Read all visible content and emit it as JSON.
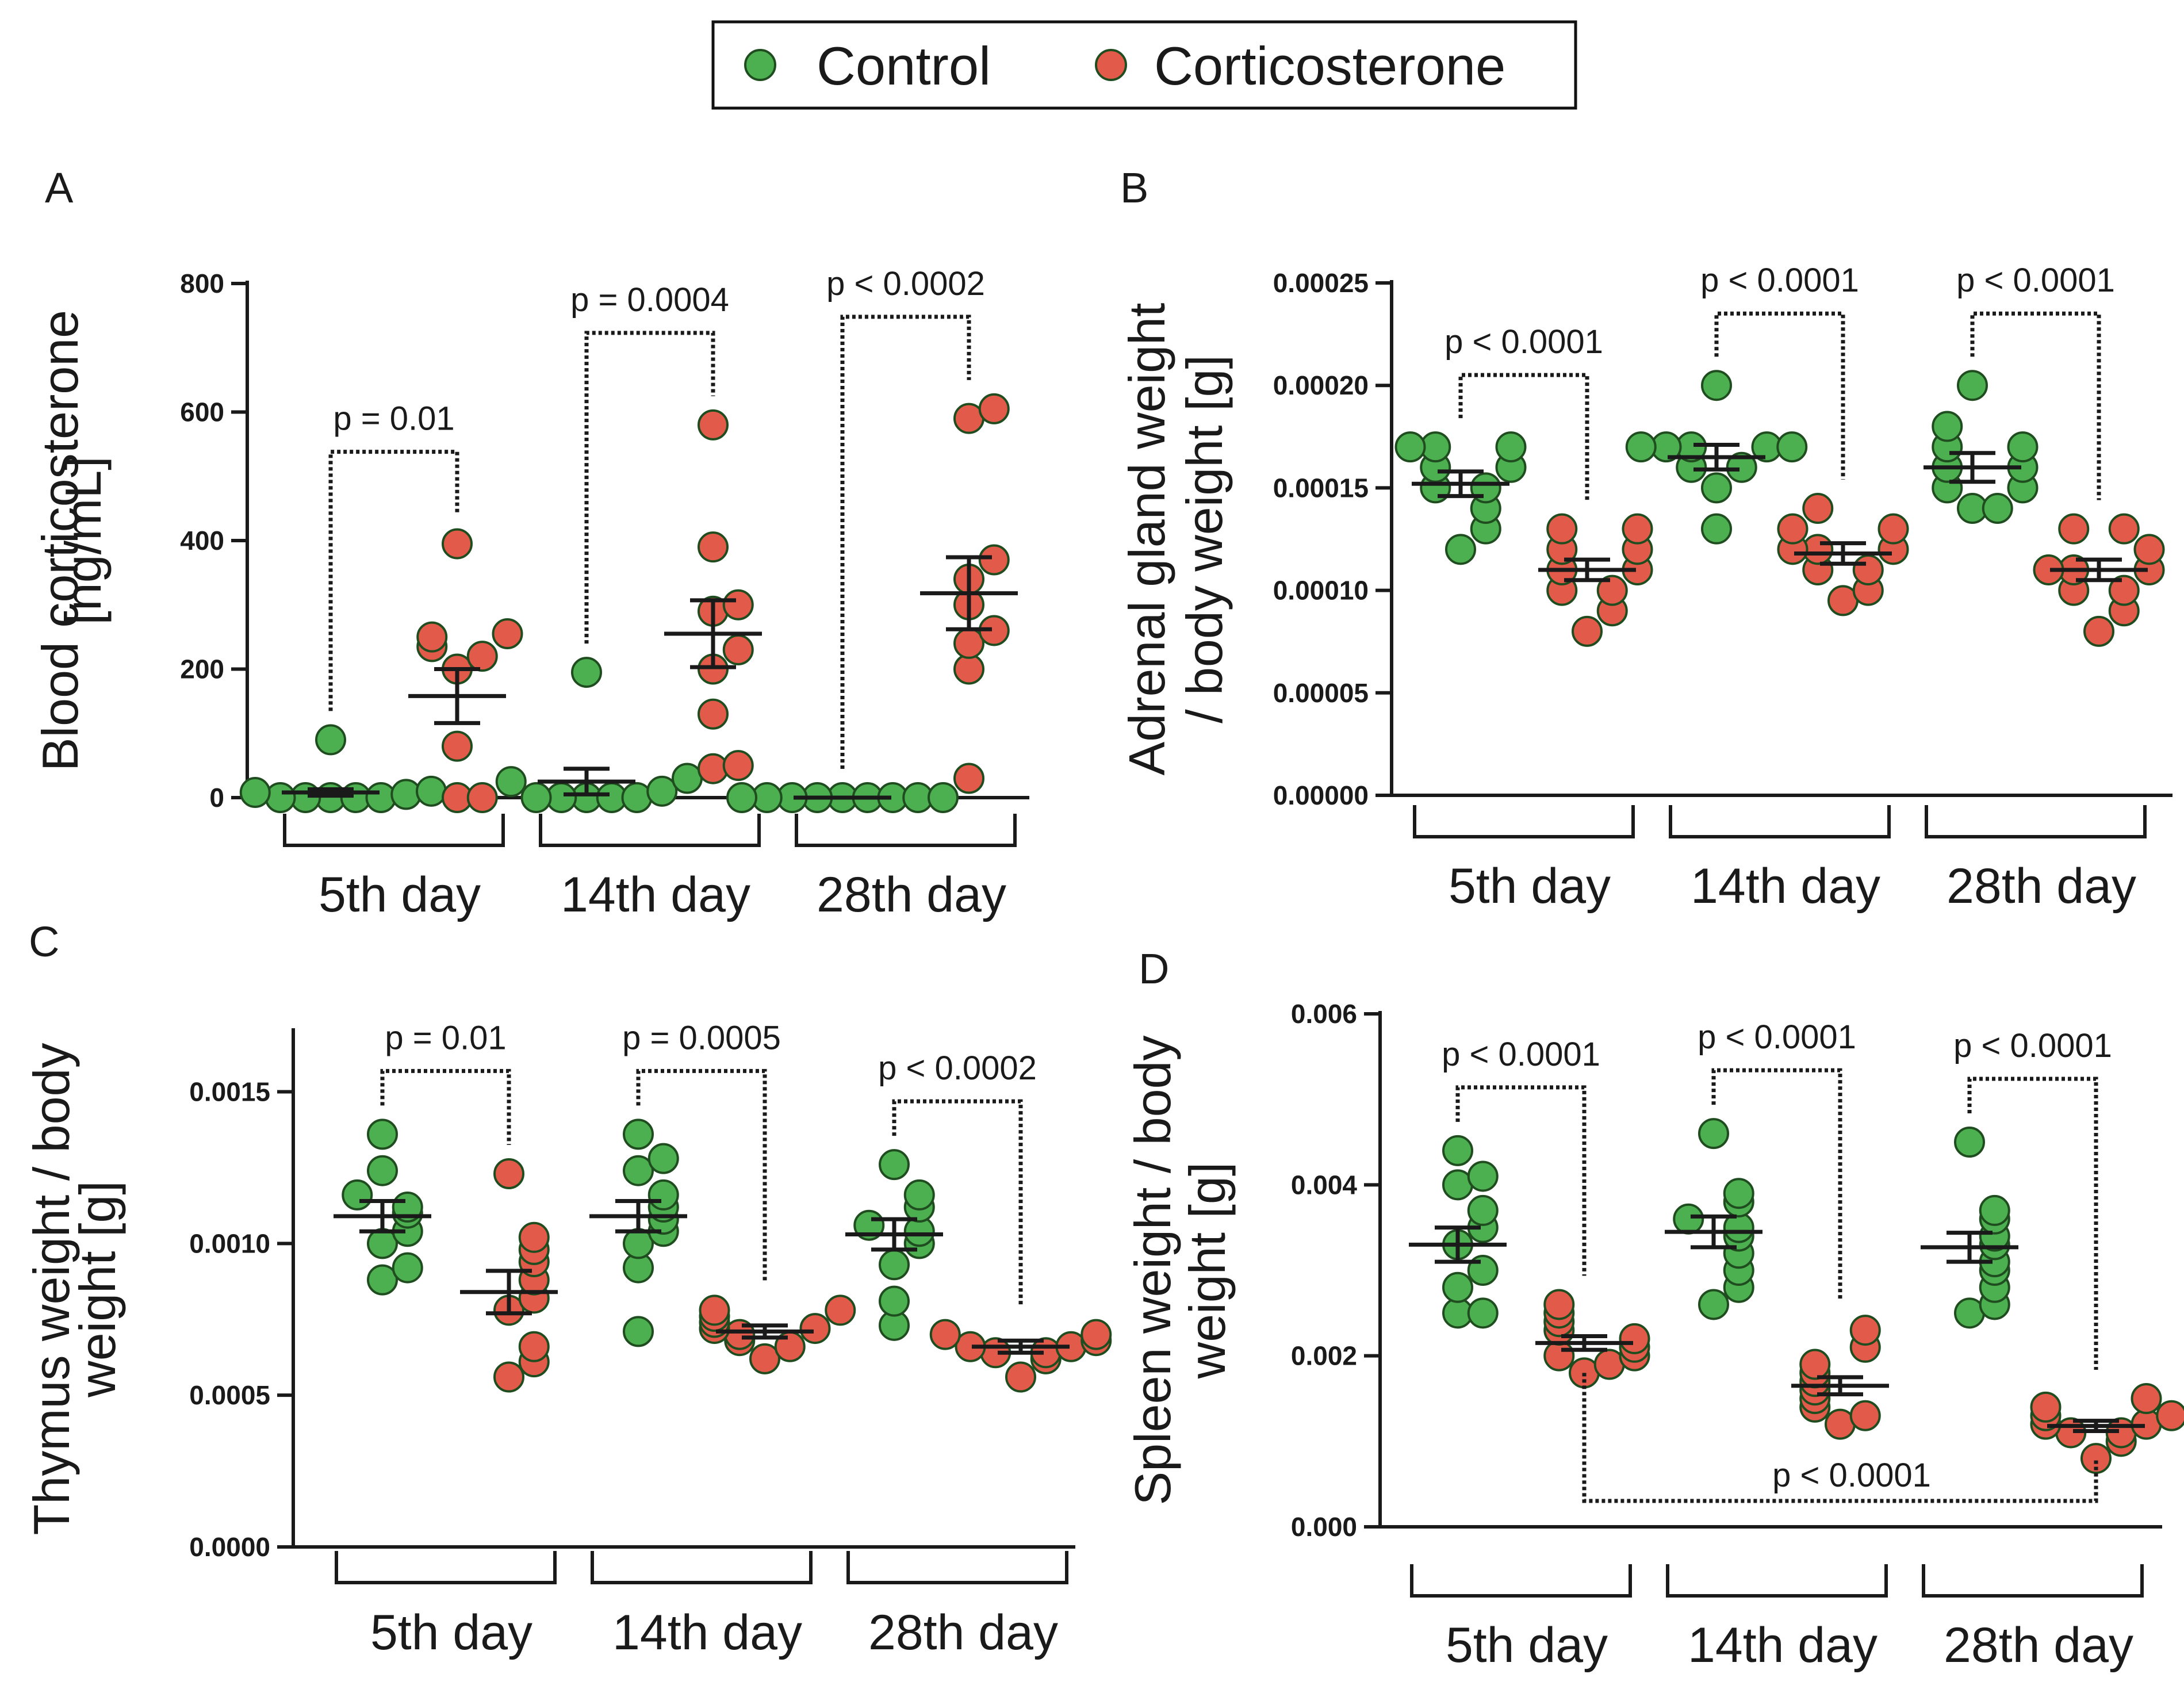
{
  "legend": {
    "entries": [
      {
        "label": "Control",
        "color": "#4caf50"
      },
      {
        "label": "Corticosterone",
        "color": "#e25a4a"
      }
    ]
  },
  "chart_data": [
    {
      "type": "scatter",
      "panel": "A",
      "ylabel": [
        "Blood corticosterone",
        "[ng/mL]"
      ],
      "ylim": [
        0,
        800
      ],
      "yticks": [
        "0",
        "200",
        "400",
        "600",
        "800"
      ],
      "groups": [
        "5th day",
        "14th day",
        "28th day"
      ],
      "series": [
        {
          "name": "Control",
          "color": "#4caf50",
          "values": [
            [
              0,
              0,
              0,
              0,
              0,
              5,
              8,
              10,
              90
            ],
            [
              0,
              0,
              0,
              0,
              0,
              10,
              25,
              30,
              195
            ],
            [
              0,
              0,
              0,
              0,
              0,
              0,
              0,
              0,
              0
            ]
          ],
          "mean": [
            8,
            25,
            0
          ],
          "sem": [
            5,
            20,
            0
          ]
        },
        {
          "name": "Corticosterone",
          "color": "#e25a4a",
          "values": [
            [
              0,
              0,
              80,
              200,
              220,
              235,
              250,
              255,
              395
            ],
            [
              45,
              50,
              130,
              200,
              230,
              290,
              300,
              390,
              580
            ],
            [
              30,
              200,
              240,
              260,
              300,
              340,
              370,
              590,
              605
            ]
          ],
          "mean": [
            158,
            255,
            318
          ],
          "sem": [
            42,
            52,
            56
          ]
        }
      ],
      "annotations": [
        {
          "text": "p = 0.01",
          "group": 0
        },
        {
          "text": "p = 0.0004",
          "group": 1
        },
        {
          "text": "p < 0.0002",
          "group": 2
        }
      ]
    },
    {
      "type": "scatter",
      "panel": "B",
      "ylabel": [
        "Adrenal gland weight",
        "/ body weight [g]"
      ],
      "ylim": [
        0,
        0.00025
      ],
      "yticks": [
        "0.00000",
        "0.00005",
        "0.00010",
        "0.00015",
        "0.00020",
        "0.00025"
      ],
      "groups": [
        "5th day",
        "14th day",
        "28th day"
      ],
      "series": [
        {
          "name": "Control",
          "color": "#4caf50",
          "values": [
            [
              0.00012,
              0.00013,
              0.00014,
              0.00015,
              0.00015,
              0.00016,
              0.00016,
              0.00017,
              0.00017,
              0.00017
            ],
            [
              0.00013,
              0.00015,
              0.00016,
              0.00016,
              0.00017,
              0.00017,
              0.00017,
              0.00017,
              0.00017,
              0.0002
            ],
            [
              0.00014,
              0.00014,
              0.00015,
              0.00015,
              0.00016,
              0.00016,
              0.00017,
              0.00017,
              0.00018,
              0.0002
            ]
          ],
          "mean": [
            0.000152,
            0.000165,
            0.00016
          ],
          "sem": [
            6e-06,
            6e-06,
            7e-06
          ]
        },
        {
          "name": "Corticosterone",
          "color": "#e25a4a",
          "values": [
            [
              8e-05,
              9e-05,
              0.0001,
              0.0001,
              0.00011,
              0.00011,
              0.00012,
              0.00012,
              0.00013,
              0.00013
            ],
            [
              9.5e-05,
              0.0001,
              0.00011,
              0.00011,
              0.00012,
              0.00012,
              0.00012,
              0.00013,
              0.00013,
              0.00014
            ],
            [
              8e-05,
              9e-05,
              0.0001,
              0.0001,
              0.00011,
              0.00011,
              0.00011,
              0.00012,
              0.00013,
              0.00013
            ]
          ],
          "mean": [
            0.00011,
            0.000118,
            0.00011
          ],
          "sem": [
            5e-06,
            5e-06,
            5e-06
          ]
        }
      ],
      "annotations": [
        {
          "text": "p < 0.0001",
          "group": 0
        },
        {
          "text": "p < 0.0001",
          "group": 1
        },
        {
          "text": "p < 0.0001",
          "group": 2
        }
      ]
    },
    {
      "type": "scatter",
      "panel": "C",
      "ylabel": [
        "Thymus weight / body",
        "weight [g]"
      ],
      "ylim": [
        0,
        0.0017
      ],
      "yticks": [
        "0.0000",
        "0.0005",
        "0.0010",
        "0.0015"
      ],
      "groups": [
        "5th day",
        "14th day",
        "28th day"
      ],
      "series": [
        {
          "name": "Control",
          "color": "#4caf50",
          "values": [
            [
              0.00088,
              0.00092,
              0.001,
              0.00104,
              0.0011,
              0.00112,
              0.00116,
              0.00124,
              0.00136
            ],
            [
              0.00071,
              0.00092,
              0.001,
              0.00104,
              0.00108,
              0.00112,
              0.00116,
              0.00124,
              0.00128,
              0.00136
            ],
            [
              0.00073,
              0.00081,
              0.00093,
              0.001,
              0.00104,
              0.00106,
              0.00112,
              0.00116,
              0.00126
            ]
          ],
          "mean": [
            0.00109,
            0.00109,
            0.00103
          ],
          "sem": [
            5e-05,
            5e-05,
            5e-05
          ]
        },
        {
          "name": "Corticosterone",
          "color": "#e25a4a",
          "values": [
            [
              0.00056,
              0.00061,
              0.00066,
              0.00078,
              0.00082,
              0.00088,
              0.00094,
              0.00098,
              0.00102,
              0.00123
            ],
            [
              0.00062,
              0.00066,
              0.00068,
              0.0007,
              0.00072,
              0.00072,
              0.00074,
              0.00076,
              0.00078,
              0.00078
            ],
            [
              0.00056,
              0.00062,
              0.00064,
              0.00064,
              0.00066,
              0.00066,
              0.00068,
              0.0007,
              0.0007
            ]
          ],
          "mean": [
            0.00084,
            0.00071,
            0.00066
          ],
          "sem": [
            7e-05,
            2e-05,
            2e-05
          ]
        }
      ],
      "annotations": [
        {
          "text": "p = 0.01",
          "group": 0
        },
        {
          "text": "p = 0.0005",
          "group": 1
        },
        {
          "text": "p < 0.0002",
          "group": 2
        }
      ]
    },
    {
      "type": "scatter",
      "panel": "D",
      "ylabel": [
        "Spleen weight / body",
        "weight [g]"
      ],
      "ylim": [
        0,
        0.006
      ],
      "yticks": [
        "0.000",
        "0.002",
        "0.004",
        "0.006"
      ],
      "groups": [
        "5th day",
        "14th day",
        "28th day"
      ],
      "series": [
        {
          "name": "Control",
          "color": "#4caf50",
          "values": [
            [
              0.0025,
              0.0025,
              0.0028,
              0.003,
              0.0033,
              0.0035,
              0.0037,
              0.004,
              0.0041,
              0.0044
            ],
            [
              0.0026,
              0.0028,
              0.003,
              0.0032,
              0.0034,
              0.0035,
              0.0036,
              0.0038,
              0.0039,
              0.0046
            ],
            [
              0.0025,
              0.0026,
              0.0028,
              0.003,
              0.0031,
              0.0033,
              0.0034,
              0.0036,
              0.0037,
              0.0045
            ]
          ],
          "mean": [
            0.0033,
            0.00345,
            0.00327
          ],
          "sem": [
            0.0002,
            0.00018,
            0.00017
          ]
        },
        {
          "name": "Corticosterone",
          "color": "#e25a4a",
          "values": [
            [
              0.0018,
              0.0019,
              0.002,
              0.002,
              0.0021,
              0.0022,
              0.0023,
              0.0024,
              0.0025,
              0.0026
            ],
            [
              0.0012,
              0.0013,
              0.0014,
              0.0015,
              0.0016,
              0.0017,
              0.0018,
              0.0019,
              0.0021,
              0.0023
            ],
            [
              0.0008,
              0.001,
              0.0011,
              0.0011,
              0.0012,
              0.0012,
              0.0013,
              0.0013,
              0.0014,
              0.0015
            ]
          ],
          "mean": [
            0.00215,
            0.00165,
            0.00118
          ],
          "sem": [
            8e-05,
            0.0001,
            6e-05
          ]
        }
      ],
      "annotations": [
        {
          "text": "p < 0.0001",
          "group": 0
        },
        {
          "text": "p < 0.0001",
          "group": 1
        },
        {
          "text": "p < 0.0001",
          "group": 2
        },
        {
          "text": "p < 0.0001",
          "between": [
            0,
            2
          ]
        }
      ]
    }
  ]
}
